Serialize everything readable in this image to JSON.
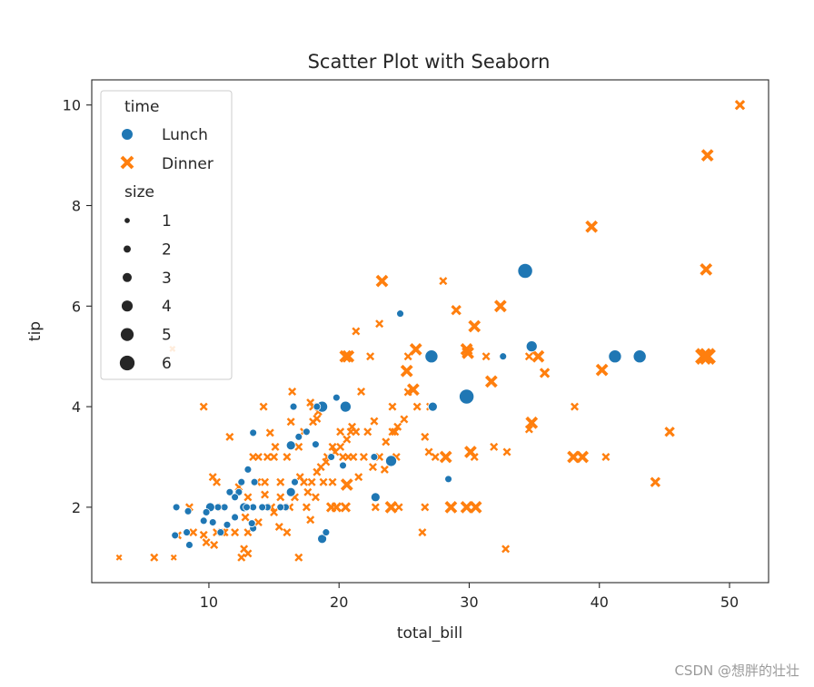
{
  "chart_data": {
    "type": "scatter",
    "title": "Scatter Plot with Seaborn",
    "xlabel": "total_bill",
    "ylabel": "tip",
    "xlim": [
      1.0,
      53.0
    ],
    "ylim": [
      0.5,
      10.5
    ],
    "xticks": [
      10,
      20,
      30,
      40,
      50
    ],
    "yticks": [
      2,
      4,
      6,
      8,
      10
    ],
    "grid": false,
    "legend_position": "top-left",
    "legend": {
      "hue_title": "time",
      "hue_entries": [
        {
          "label": "Lunch",
          "marker": "circle",
          "color": "#1f77b4"
        },
        {
          "label": "Dinner",
          "marker": "x",
          "color": "#ff7f0e"
        }
      ],
      "size_title": "size",
      "size_entries": [
        "1",
        "2",
        "3",
        "4",
        "5",
        "6"
      ]
    },
    "series": [
      {
        "name": "Lunch",
        "color": "#1f77b4",
        "marker": "circle",
        "points": [
          [
            34.3,
            6.7,
            6
          ],
          [
            27.1,
            5.0,
            5
          ],
          [
            41.2,
            5.0,
            5
          ],
          [
            43.1,
            5.0,
            5
          ],
          [
            29.8,
            4.2,
            6
          ],
          [
            34.8,
            5.2,
            4
          ],
          [
            24.7,
            5.85,
            2
          ],
          [
            32.6,
            5.0,
            2
          ],
          [
            20.5,
            4.0,
            4
          ],
          [
            18.7,
            4.0,
            4
          ],
          [
            27.2,
            4.0,
            3
          ],
          [
            24.0,
            2.92,
            4
          ],
          [
            22.8,
            2.2,
            3
          ],
          [
            18.7,
            1.37,
            3
          ],
          [
            19.0,
            1.5,
            2
          ],
          [
            28.4,
            2.56,
            2
          ],
          [
            22.7,
            3.0,
            2
          ],
          [
            19.8,
            4.18,
            2
          ],
          [
            16.5,
            4.0,
            2
          ],
          [
            18.3,
            4.0,
            2
          ],
          [
            16.9,
            3.4,
            2
          ],
          [
            13.4,
            3.48,
            2
          ],
          [
            18.2,
            3.25,
            2
          ],
          [
            16.3,
            3.23,
            3
          ],
          [
            20.3,
            2.83,
            2
          ],
          [
            17.5,
            3.5,
            2
          ],
          [
            19.4,
            3.0,
            2
          ],
          [
            16.6,
            2.5,
            2
          ],
          [
            16.3,
            2.3,
            3
          ],
          [
            15.9,
            2.0,
            2
          ],
          [
            15.5,
            2.0,
            2
          ],
          [
            13.0,
            2.75,
            2
          ],
          [
            13.5,
            2.5,
            2
          ],
          [
            12.5,
            2.5,
            2
          ],
          [
            12.3,
            2.3,
            2
          ],
          [
            11.6,
            2.3,
            2
          ],
          [
            12.0,
            2.2,
            2
          ],
          [
            12.7,
            2.0,
            3
          ],
          [
            13.4,
            2.0,
            2
          ],
          [
            14.5,
            2.0,
            2
          ],
          [
            11.2,
            2.0,
            2
          ],
          [
            10.7,
            2.0,
            2
          ],
          [
            10.1,
            2.0,
            3
          ],
          [
            9.8,
            1.9,
            2
          ],
          [
            9.6,
            1.73,
            2
          ],
          [
            10.3,
            1.7,
            2
          ],
          [
            11.4,
            1.65,
            2
          ],
          [
            12.0,
            1.8,
            2
          ],
          [
            13.4,
            1.58,
            2
          ],
          [
            8.4,
            1.92,
            2
          ],
          [
            7.5,
            2.0,
            2
          ],
          [
            7.4,
            1.44,
            2
          ],
          [
            8.3,
            1.5,
            2
          ],
          [
            8.5,
            1.25,
            2
          ],
          [
            10.9,
            1.5,
            2
          ],
          [
            12.9,
            2.0,
            2
          ],
          [
            14.1,
            2.0,
            2
          ],
          [
            13.3,
            1.68,
            2
          ]
        ]
      },
      {
        "name": "Dinner",
        "color": "#ff7f0e",
        "marker": "x",
        "points": [
          [
            50.8,
            10.0,
            3
          ],
          [
            48.3,
            9.0,
            4
          ],
          [
            39.4,
            7.58,
            4
          ],
          [
            48.2,
            6.73,
            4
          ],
          [
            23.3,
            6.5,
            4
          ],
          [
            28.0,
            6.5,
            2
          ],
          [
            32.4,
            6.0,
            4
          ],
          [
            29.0,
            5.92,
            3
          ],
          [
            30.4,
            5.6,
            4
          ],
          [
            23.1,
            5.65,
            2
          ],
          [
            21.3,
            5.5,
            2
          ],
          [
            7.2,
            5.15,
            1
          ],
          [
            25.9,
            5.14,
            4
          ],
          [
            29.8,
            5.14,
            4
          ],
          [
            29.9,
            5.07,
            4
          ],
          [
            20.7,
            5.0,
            4
          ],
          [
            20.5,
            5.0,
            4
          ],
          [
            22.4,
            5.0,
            2
          ],
          [
            25.3,
            5.0,
            2
          ],
          [
            31.3,
            5.0,
            2
          ],
          [
            34.6,
            5.0,
            2
          ],
          [
            48.0,
            5.0,
            6
          ],
          [
            48.3,
            5.0,
            6
          ],
          [
            35.3,
            5.0,
            4
          ],
          [
            25.2,
            4.71,
            4
          ],
          [
            35.8,
            4.67,
            3
          ],
          [
            40.2,
            4.73,
            4
          ],
          [
            31.7,
            4.5,
            4
          ],
          [
            25.7,
            4.34,
            4
          ],
          [
            25.3,
            4.29,
            2
          ],
          [
            21.7,
            4.3,
            2
          ],
          [
            24.1,
            4.0,
            2
          ],
          [
            26.0,
            4.0,
            2
          ],
          [
            27.0,
            4.0,
            2
          ],
          [
            38.1,
            4.0,
            2
          ],
          [
            9.6,
            4.0,
            2
          ],
          [
            14.2,
            4.0,
            2
          ],
          [
            16.4,
            4.3,
            2
          ],
          [
            17.8,
            4.08,
            2
          ],
          [
            18.3,
            3.76,
            2
          ],
          [
            22.7,
            3.71,
            2
          ],
          [
            34.8,
            3.68,
            4
          ],
          [
            34.6,
            3.55,
            2
          ],
          [
            25.0,
            3.75,
            2
          ],
          [
            24.5,
            3.6,
            2
          ],
          [
            24.3,
            3.5,
            2
          ],
          [
            24.1,
            3.5,
            2
          ],
          [
            21.3,
            3.5,
            2
          ],
          [
            20.9,
            3.5,
            2
          ],
          [
            20.6,
            3.35,
            2
          ],
          [
            17.3,
            3.5,
            2
          ],
          [
            16.3,
            3.7,
            2
          ],
          [
            16.9,
            3.2,
            2
          ],
          [
            18.0,
            3.7,
            2
          ],
          [
            18.4,
            3.9,
            2
          ],
          [
            18.0,
            4.0,
            2
          ],
          [
            16.0,
            3.0,
            2
          ],
          [
            15.0,
            3.0,
            2
          ],
          [
            14.5,
            3.0,
            2
          ],
          [
            15.1,
            3.2,
            2
          ],
          [
            13.8,
            3.0,
            2
          ],
          [
            14.7,
            3.48,
            2
          ],
          [
            11.6,
            3.4,
            2
          ],
          [
            13.4,
            3.0,
            2
          ],
          [
            19.1,
            3.0,
            2
          ],
          [
            19.5,
            3.2,
            2
          ],
          [
            20.1,
            3.2,
            2
          ],
          [
            20.3,
            3.0,
            2
          ],
          [
            20.7,
            3.0,
            2
          ],
          [
            21.1,
            3.0,
            2
          ],
          [
            21.9,
            3.0,
            2
          ],
          [
            23.1,
            3.0,
            2
          ],
          [
            23.6,
            3.3,
            2
          ],
          [
            26.6,
            3.4,
            2
          ],
          [
            26.9,
            3.1,
            2
          ],
          [
            27.4,
            3.0,
            2
          ],
          [
            28.2,
            3.0,
            4
          ],
          [
            28.6,
            2.0,
            4
          ],
          [
            30.1,
            3.1,
            4
          ],
          [
            30.4,
            3.0,
            2
          ],
          [
            31.9,
            3.2,
            2
          ],
          [
            32.9,
            3.1,
            2
          ],
          [
            38.0,
            3.0,
            4
          ],
          [
            38.7,
            3.0,
            4
          ],
          [
            40.5,
            3.0,
            2
          ],
          [
            45.4,
            3.5,
            3
          ],
          [
            44.3,
            2.5,
            3
          ],
          [
            29.8,
            2.0,
            4
          ],
          [
            30.5,
            2.0,
            4
          ],
          [
            26.4,
            1.5,
            2
          ],
          [
            32.8,
            1.17,
            2
          ],
          [
            24.0,
            2.0,
            4
          ],
          [
            24.6,
            2.0,
            2
          ],
          [
            22.8,
            2.0,
            2
          ],
          [
            19.8,
            2.0,
            3
          ],
          [
            19.4,
            2.0,
            3
          ],
          [
            17.5,
            2.0,
            2
          ],
          [
            16.2,
            2.0,
            2
          ],
          [
            15.4,
            1.61,
            2
          ],
          [
            14.8,
            2.0,
            2
          ],
          [
            17.8,
            1.75,
            2
          ],
          [
            16.0,
            1.5,
            2
          ],
          [
            13.0,
            1.5,
            2
          ],
          [
            12.0,
            1.5,
            2
          ],
          [
            11.0,
            1.5,
            2
          ],
          [
            11.2,
            1.5,
            2
          ],
          [
            10.6,
            1.5,
            2
          ],
          [
            9.8,
            1.3,
            2
          ],
          [
            9.6,
            1.45,
            2
          ],
          [
            10.4,
            1.25,
            2
          ],
          [
            8.5,
            2.0,
            2
          ],
          [
            8.8,
            1.5,
            2
          ],
          [
            7.6,
            1.44,
            2
          ],
          [
            7.3,
            1.0,
            1
          ],
          [
            5.8,
            1.0,
            2
          ],
          [
            3.1,
            1.0,
            1
          ],
          [
            12.5,
            1.0,
            2
          ],
          [
            12.7,
            1.17,
            2
          ],
          [
            13.0,
            1.08,
            2
          ],
          [
            16.9,
            1.0,
            2
          ],
          [
            13.7,
            2.5,
            2
          ],
          [
            14.3,
            2.5,
            2
          ],
          [
            15.5,
            2.5,
            2
          ],
          [
            17.3,
            2.5,
            2
          ],
          [
            17.9,
            2.5,
            2
          ],
          [
            18.3,
            2.7,
            2
          ],
          [
            18.8,
            2.5,
            2
          ],
          [
            19.5,
            2.5,
            2
          ],
          [
            20.6,
            2.45,
            4
          ],
          [
            20.5,
            2.0,
            3
          ],
          [
            21.5,
            2.6,
            2
          ],
          [
            22.6,
            2.8,
            2
          ],
          [
            23.5,
            2.75,
            2
          ],
          [
            17.0,
            2.6,
            2
          ],
          [
            16.6,
            2.2,
            2
          ],
          [
            15.5,
            2.2,
            2
          ],
          [
            14.3,
            2.25,
            2
          ],
          [
            13.0,
            2.2,
            2
          ],
          [
            12.3,
            2.4,
            2
          ],
          [
            10.6,
            2.5,
            2
          ],
          [
            10.3,
            2.6,
            2
          ],
          [
            11.0,
            2.0,
            2
          ],
          [
            12.8,
            1.8,
            2
          ],
          [
            13.8,
            1.7,
            2
          ],
          [
            15.0,
            1.9,
            2
          ],
          [
            17.6,
            2.3,
            2
          ],
          [
            18.2,
            2.2,
            2
          ],
          [
            18.6,
            2.8,
            2
          ],
          [
            19.0,
            2.9,
            2
          ],
          [
            19.7,
            3.1,
            2
          ],
          [
            20.1,
            3.5,
            2
          ],
          [
            21.0,
            3.6,
            2
          ],
          [
            22.2,
            3.5,
            2
          ],
          [
            26.6,
            2.0,
            2
          ],
          [
            24.4,
            3.0,
            2
          ]
        ]
      }
    ]
  },
  "watermark": "CSDN @想胖的壮壮"
}
